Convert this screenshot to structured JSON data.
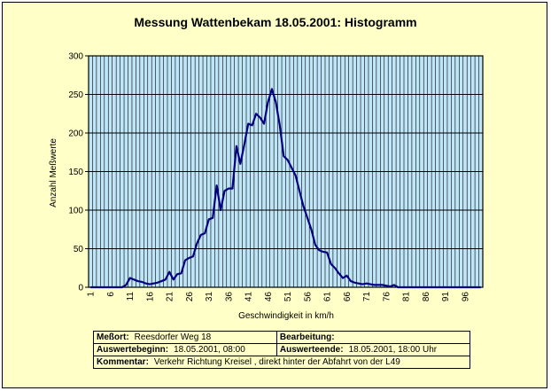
{
  "chart_data": {
    "type": "line",
    "title": "Messung Wattenbekam 18.05.2001: Histogramm",
    "xlabel": "Geschwindigkeit in km/h",
    "ylabel": "Anzahl Meßwerte",
    "xlim": [
      1,
      100
    ],
    "ylim": [
      0,
      300
    ],
    "y_ticks": [
      0,
      50,
      100,
      150,
      200,
      250,
      300
    ],
    "x_tick_labels": [
      1,
      6,
      11,
      16,
      21,
      26,
      31,
      36,
      41,
      46,
      51,
      56,
      61,
      66,
      71,
      76,
      81,
      86,
      91,
      96
    ],
    "grid": true,
    "colors": {
      "plot_background": "#bfe6f8",
      "line": "#000080",
      "frame_background": "#ffffc8"
    },
    "series": [
      {
        "x": [
          1,
          2,
          3,
          4,
          5,
          6,
          7,
          8,
          9,
          10,
          11,
          12,
          13,
          14,
          15,
          16,
          17,
          18,
          19,
          20,
          21,
          22,
          23,
          24,
          25,
          26,
          27,
          28,
          29,
          30,
          31,
          32,
          33,
          34,
          35,
          36,
          37,
          38,
          39,
          40,
          41,
          42,
          43,
          44,
          45,
          46,
          47,
          48,
          49,
          50,
          51,
          52,
          53,
          54,
          55,
          56,
          57,
          58,
          59,
          60,
          61,
          62,
          63,
          64,
          65,
          66,
          67,
          68,
          69,
          70,
          71,
          72,
          73,
          74,
          75,
          76,
          77,
          78,
          79,
          80,
          81,
          82,
          83,
          84,
          85,
          86,
          87,
          88,
          89,
          90,
          91,
          92,
          93,
          94,
          95,
          96,
          97,
          98,
          99,
          100
        ],
        "values": [
          0,
          0,
          0,
          0,
          0,
          0,
          0,
          0,
          0,
          3,
          12,
          10,
          8,
          7,
          5,
          4,
          5,
          6,
          8,
          10,
          20,
          10,
          17,
          18,
          35,
          38,
          40,
          57,
          68,
          70,
          88,
          90,
          132,
          100,
          125,
          128,
          128,
          183,
          160,
          185,
          212,
          210,
          225,
          220,
          212,
          240,
          257,
          240,
          210,
          170,
          165,
          155,
          145,
          125,
          105,
          90,
          75,
          55,
          48,
          46,
          45,
          30,
          25,
          18,
          12,
          15,
          8,
          6,
          5,
          4,
          5,
          4,
          3,
          3,
          3,
          2,
          1,
          3,
          0,
          0,
          0,
          0,
          0,
          0,
          0,
          0,
          0,
          0,
          0,
          0,
          0,
          0,
          0,
          0,
          0,
          0,
          0,
          0,
          0,
          0
        ]
      }
    ]
  },
  "info": {
    "messort_label": "Meßort:",
    "messort_value": "Reesdorfer Weg 18",
    "bearbeitung_label": "Bearbeitung:",
    "bearbeitung_value": "",
    "auswertebeginn_label": "Auswertebeginn:",
    "auswertebeginn_value": "18.05.2001, 08:00",
    "auswerteende_label": "Auswerteende:",
    "auswerteende_value": "18.05.2001, 18:00 Uhr",
    "kommentar_label": "Kommentar:",
    "kommentar_value": "Verkehr Richtung Kreisel , direkt hinter der Abfahrt von der L49"
  }
}
